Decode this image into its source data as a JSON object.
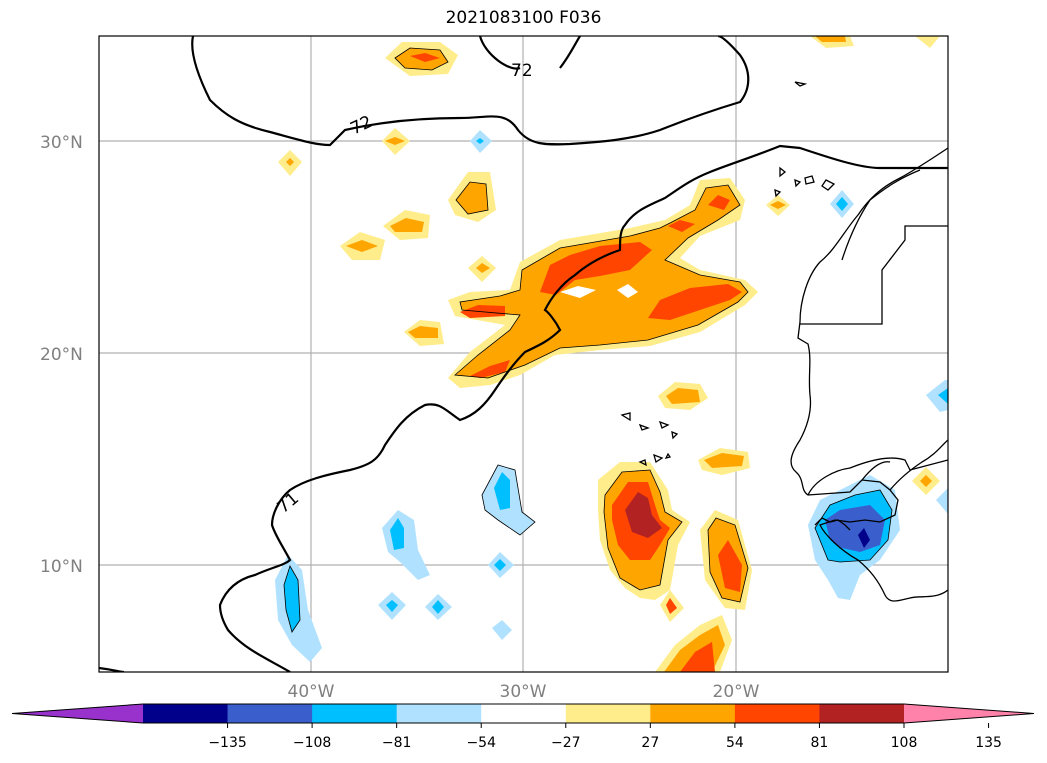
{
  "title": "2021083100 F036",
  "map": {
    "lat_labels": [
      "30°N",
      "20°N",
      "10°N"
    ],
    "lon_labels": [
      "40°W",
      "30°W",
      "20°W"
    ],
    "contour_labels": [
      "72",
      "72",
      "71"
    ]
  },
  "colorbar": {
    "colors": [
      "#9932cc",
      "#00008b",
      "#3a5fcd",
      "#00bfff",
      "#b0e2ff",
      "#ffffff",
      "#ffec8b",
      "#ffa500",
      "#ff4500",
      "#b22222",
      "#ff82ab"
    ],
    "tick_labels": [
      "−135",
      "−108",
      "−81",
      "−54",
      "−27",
      "27",
      "54",
      "81",
      "108",
      "135"
    ]
  },
  "palette": {
    "pale_yellow": "#ffec8b",
    "orange": "#ffa500",
    "red_orange": "#ff4500",
    "dark_red": "#b22222",
    "light_blue": "#b0e2ff",
    "deep_sky": "#00bfff",
    "royal_blue": "#3a5fcd",
    "navy": "#00008b",
    "grid": "#b0b0b0"
  }
}
